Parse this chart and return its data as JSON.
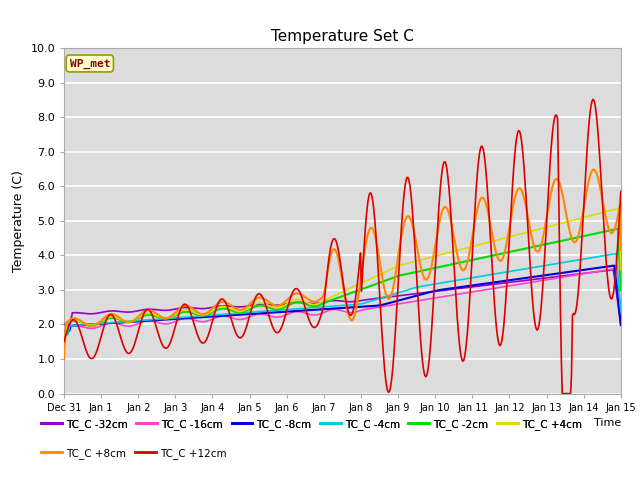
{
  "title": "Temperature Set C",
  "xlabel": "Time",
  "ylabel": "Temperature (C)",
  "ylim": [
    0.0,
    10.0
  ],
  "yticks": [
    0.0,
    1.0,
    2.0,
    3.0,
    4.0,
    5.0,
    6.0,
    7.0,
    8.0,
    9.0,
    10.0
  ],
  "bg_color": "#dcdcdc",
  "grid_color": "#ffffff",
  "annotation_text": "WP_met",
  "annotation_bg": "#ffffcc",
  "annotation_border": "#999900",
  "annotation_text_color": "#880000",
  "series": [
    {
      "label": "TC_C -32cm",
      "color": "#9900cc",
      "lw": 1.2
    },
    {
      "label": "TC_C -16cm",
      "color": "#ff44cc",
      "lw": 1.2
    },
    {
      "label": "TC_C -8cm",
      "color": "#0000dd",
      "lw": 1.5
    },
    {
      "label": "TC_C -4cm",
      "color": "#00ccdd",
      "lw": 1.2
    },
    {
      "label": "TC_C -2cm",
      "color": "#00dd00",
      "lw": 1.5
    },
    {
      "label": "TC_C +4cm",
      "color": "#dddd00",
      "lw": 1.2
    },
    {
      "label": "TC_C +8cm",
      "color": "#ff8800",
      "lw": 1.5
    },
    {
      "label": "TC_C +12cm",
      "color": "#dd0000",
      "lw": 1.2
    }
  ],
  "xtick_labels": [
    "Dec 31",
    "Jan 1",
    "Jan 2",
    "Jan 3",
    "Jan 4",
    "Jan 5",
    "Jan 6",
    "Jan 7",
    "Jan 8",
    "Jan 9",
    "Jan 10",
    "Jan 11",
    "Jan 12",
    "Jan 13",
    "Jan 14",
    "Jan 15"
  ],
  "n_points": 600
}
